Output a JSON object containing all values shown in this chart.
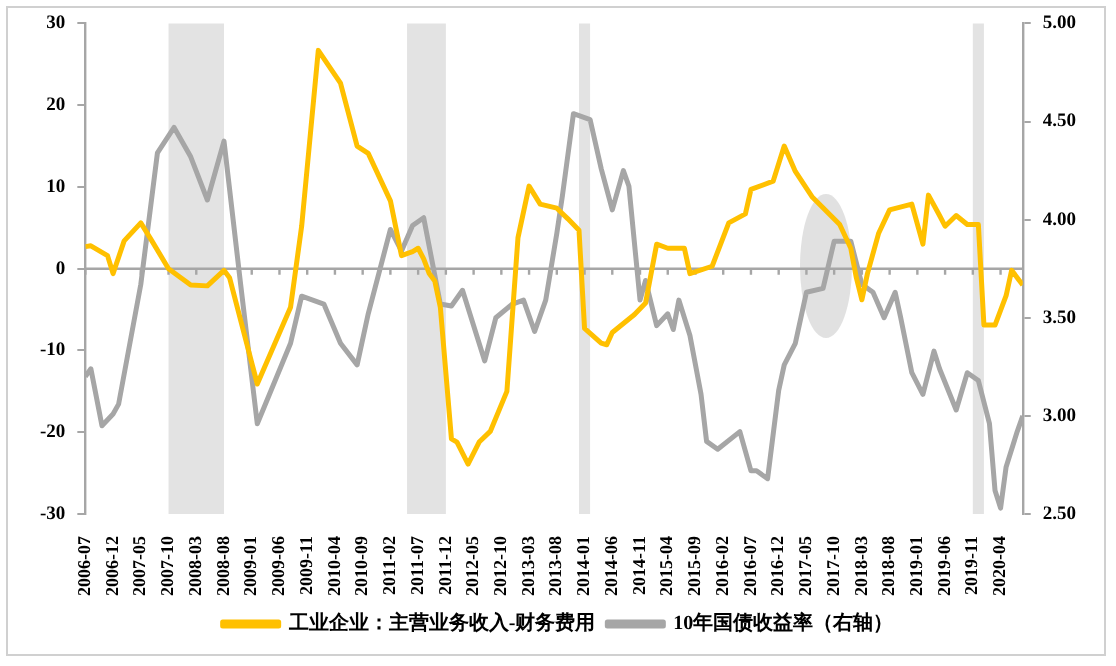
{
  "chart_data": {
    "type": "line",
    "legend": "bottom",
    "marker": "none",
    "line_style": "solid",
    "xlim": [
      "2006-07",
      "2020-08"
    ],
    "xticks": [
      "2006-07",
      "2006-12",
      "2007-05",
      "2007-10",
      "2008-03",
      "2008-08",
      "2009-01",
      "2009-06",
      "2009-11",
      "2010-04",
      "2010-09",
      "2011-02",
      "2011-07",
      "2011-12",
      "2012-05",
      "2012-10",
      "2013-03",
      "2013-08",
      "2014-01",
      "2014-06",
      "2014-11",
      "2015-04",
      "2015-09",
      "2016-02",
      "2016-07",
      "2016-12",
      "2017-05",
      "2017-10",
      "2018-03",
      "2018-08",
      "2019-01",
      "2019-06",
      "2019-11",
      "2020-04"
    ],
    "ylim": [
      -30,
      30
    ],
    "yticks": [
      -30,
      -20,
      -10,
      0,
      10,
      20,
      30
    ],
    "y2lim": [
      2.5,
      5
    ],
    "y2ticks": [
      {
        "value": 2.5,
        "label": "2.50"
      },
      {
        "value": 3,
        "label": "3.00"
      },
      {
        "value": 3.5,
        "label": "3.50"
      },
      {
        "value": 4,
        "label": "4.00"
      },
      {
        "value": 4.5,
        "label": "4.50"
      },
      {
        "value": 5,
        "label": "5.00"
      }
    ],
    "bands": [
      {
        "axis": "x",
        "from": "2007-10",
        "to": "2008-08",
        "color": "#e3e3e3"
      },
      {
        "axis": "x",
        "from": "2011-05",
        "to": "2011-12",
        "color": "#e3e3e3"
      },
      {
        "axis": "x",
        "from": "2013-12",
        "to": "2014-02",
        "color": "#e3e3e3"
      },
      {
        "axis": "x",
        "from": "2019-11",
        "to": "2020-01",
        "color": "#e3e3e3"
      }
    ],
    "ref_lines": [
      {
        "axis": "y",
        "value": 0,
        "color": "#a6a6a6"
      }
    ],
    "series": [
      {
        "name": "工业企业：主营业务收入-财务费用",
        "color": "#ffc000",
        "x": [
          "2006-07",
          "2006-08",
          "2006-11",
          "2006-12",
          "2007-02",
          "2007-05",
          "2007-07",
          "2007-10",
          "2008-02",
          "2008-05",
          "2008-08",
          "2008-09",
          "2009-02",
          "2009-08",
          "2009-10",
          "2010-01",
          "2010-05",
          "2010-08",
          "2010-10",
          "2011-02",
          "2011-04",
          "2011-06",
          "2011-07",
          "2011-08",
          "2011-09",
          "2011-10",
          "2011-11",
          "2012-01",
          "2012-02",
          "2012-04",
          "2012-06",
          "2012-08",
          "2012-11",
          "2013-01",
          "2013-03",
          "2013-05",
          "2013-08",
          "2013-10",
          "2013-12",
          "2014-01",
          "2014-04",
          "2014-05",
          "2014-06",
          "2014-10",
          "2014-12",
          "2015-02",
          "2015-04",
          "2015-07",
          "2015-08",
          "2015-12",
          "2016-03",
          "2016-06",
          "2016-07",
          "2016-11",
          "2017-01",
          "2017-03",
          "2017-06",
          "2017-11",
          "2018-01",
          "2018-02",
          "2018-03",
          "2018-04",
          "2018-06",
          "2018-08",
          "2018-12",
          "2019-02",
          "2019-03",
          "2019-05",
          "2019-06",
          "2019-08",
          "2019-10",
          "2019-12",
          "2020-01",
          "2020-03",
          "2020-05",
          "2020-06",
          "2020-08"
        ],
        "values": [
          2.7,
          2.8,
          1.6,
          -0.6,
          3.4,
          5.6,
          3.4,
          0,
          -2.0,
          -2.1,
          -0.2,
          -1.1,
          -14.1,
          -4.7,
          5.2,
          26.7,
          22.7,
          15.0,
          14.1,
          8.3,
          1.6,
          2.1,
          2.5,
          1.2,
          -0.6,
          -1.5,
          -4.7,
          -20.8,
          -21.2,
          -23.9,
          -21.2,
          -19.9,
          -15.0,
          3.8,
          10.1,
          7.9,
          7.4,
          6.1,
          4.7,
          -7.3,
          -9.1,
          -9.3,
          -7.8,
          -5.6,
          -4.2,
          3.0,
          2.5,
          2.5,
          -0.6,
          0.3,
          5.6,
          6.7,
          9.7,
          10.7,
          15.0,
          11.9,
          8.8,
          5.4,
          2.5,
          -1.1,
          -3.8,
          -0.6,
          4.3,
          7.2,
          7.9,
          3.0,
          9.0,
          6.5,
          5.2,
          6.5,
          5.4,
          5.4,
          -6.9,
          -6.9,
          -3.3,
          -0.2,
          -2.0
        ]
      },
      {
        "name": "10年国债收益率（右轴）",
        "color": "#a6a6a6",
        "axis": "y2",
        "x": [
          "2006-07",
          "2006-08",
          "2006-10",
          "2006-12",
          "2007-01",
          "2007-05",
          "2007-08",
          "2007-11",
          "2008-02",
          "2008-05",
          "2008-08",
          "2008-11",
          "2009-02",
          "2009-08",
          "2009-10",
          "2010-02",
          "2010-05",
          "2010-08",
          "2010-10",
          "2011-02",
          "2011-04",
          "2011-06",
          "2011-08",
          "2011-11",
          "2012-01",
          "2012-03",
          "2012-07",
          "2012-09",
          "2012-12",
          "2013-02",
          "2013-04",
          "2013-06",
          "2013-08",
          "2013-09",
          "2013-11",
          "2014-02",
          "2014-04",
          "2014-06",
          "2014-08",
          "2014-09",
          "2014-11",
          "2014-12",
          "2015-02",
          "2015-04",
          "2015-05",
          "2015-06",
          "2015-08",
          "2015-10",
          "2015-11",
          "2016-01",
          "2016-05",
          "2016-07",
          "2016-08",
          "2016-10",
          "2016-12",
          "2017-01",
          "2017-03",
          "2017-05",
          "2017-08",
          "2017-10",
          "2017-11",
          "2018-01",
          "2018-03",
          "2018-05",
          "2018-07",
          "2018-09",
          "2018-10",
          "2018-12",
          "2019-02",
          "2019-04",
          "2019-05",
          "2019-08",
          "2019-10",
          "2019-12",
          "2020-02",
          "2020-03",
          "2020-04",
          "2020-05",
          "2020-07",
          "2020-08"
        ],
        "values": [
          3.2,
          3.24,
          2.95,
          3.01,
          3.06,
          3.67,
          4.34,
          4.47,
          4.32,
          4.1,
          4.4,
          3.67,
          2.96,
          3.37,
          3.61,
          3.57,
          3.37,
          3.26,
          3.52,
          3.95,
          3.84,
          3.97,
          4.01,
          3.57,
          3.56,
          3.64,
          3.28,
          3.5,
          3.57,
          3.59,
          3.43,
          3.59,
          3.93,
          4.12,
          4.54,
          4.51,
          4.26,
          4.05,
          4.25,
          4.17,
          3.59,
          3.69,
          3.46,
          3.52,
          3.44,
          3.59,
          3.41,
          3.11,
          2.87,
          2.83,
          2.92,
          2.72,
          2.72,
          2.68,
          3.13,
          3.26,
          3.37,
          3.63,
          3.65,
          3.89,
          3.89,
          3.89,
          3.67,
          3.63,
          3.5,
          3.63,
          3.5,
          3.22,
          3.11,
          3.33,
          3.24,
          3.03,
          3.22,
          3.18,
          2.96,
          2.62,
          2.53,
          2.74,
          2.92,
          3.0
        ]
      }
    ]
  }
}
